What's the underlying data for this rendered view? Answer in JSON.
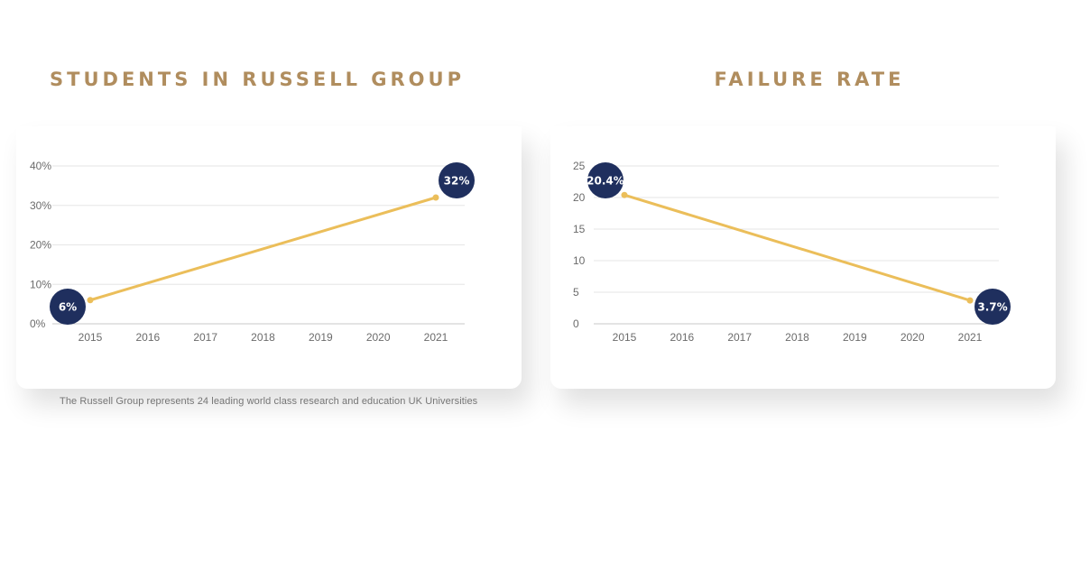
{
  "chart_data": [
    {
      "type": "line",
      "title": "STUDENTS IN RUSSELL GROUP",
      "x": [
        "2015",
        "2016",
        "2017",
        "2018",
        "2019",
        "2020",
        "2021"
      ],
      "series": [
        {
          "points": [
            {
              "x": "2015",
              "y": 6,
              "label": "6%"
            },
            {
              "x": "2021",
              "y": 32,
              "label": "32%"
            }
          ]
        }
      ],
      "y_ticks": [
        "0%",
        "10%",
        "20%",
        "30%",
        "40%"
      ],
      "ylim": [
        0,
        40
      ],
      "grid": true,
      "footnote": "The Russell Group represents 24 leading world class research and education UK Universities"
    },
    {
      "type": "line",
      "title": "FAILURE RATE",
      "x": [
        "2015",
        "2016",
        "2017",
        "2018",
        "2019",
        "2020",
        "2021"
      ],
      "series": [
        {
          "points": [
            {
              "x": "2015",
              "y": 20.4,
              "label": "20.4%"
            },
            {
              "x": "2021",
              "y": 3.7,
              "label": "3.7%"
            }
          ]
        }
      ],
      "y_ticks": [
        "0",
        "5",
        "10",
        "15",
        "20",
        "25"
      ],
      "ylim": [
        0,
        25
      ],
      "grid": true
    }
  ],
  "colors": {
    "title": "#b08d5e",
    "line": "#ebbe5a",
    "bubble": "#1f2f5e",
    "grid": "#e6e6e6",
    "axis_text": "#6b6b6b"
  }
}
